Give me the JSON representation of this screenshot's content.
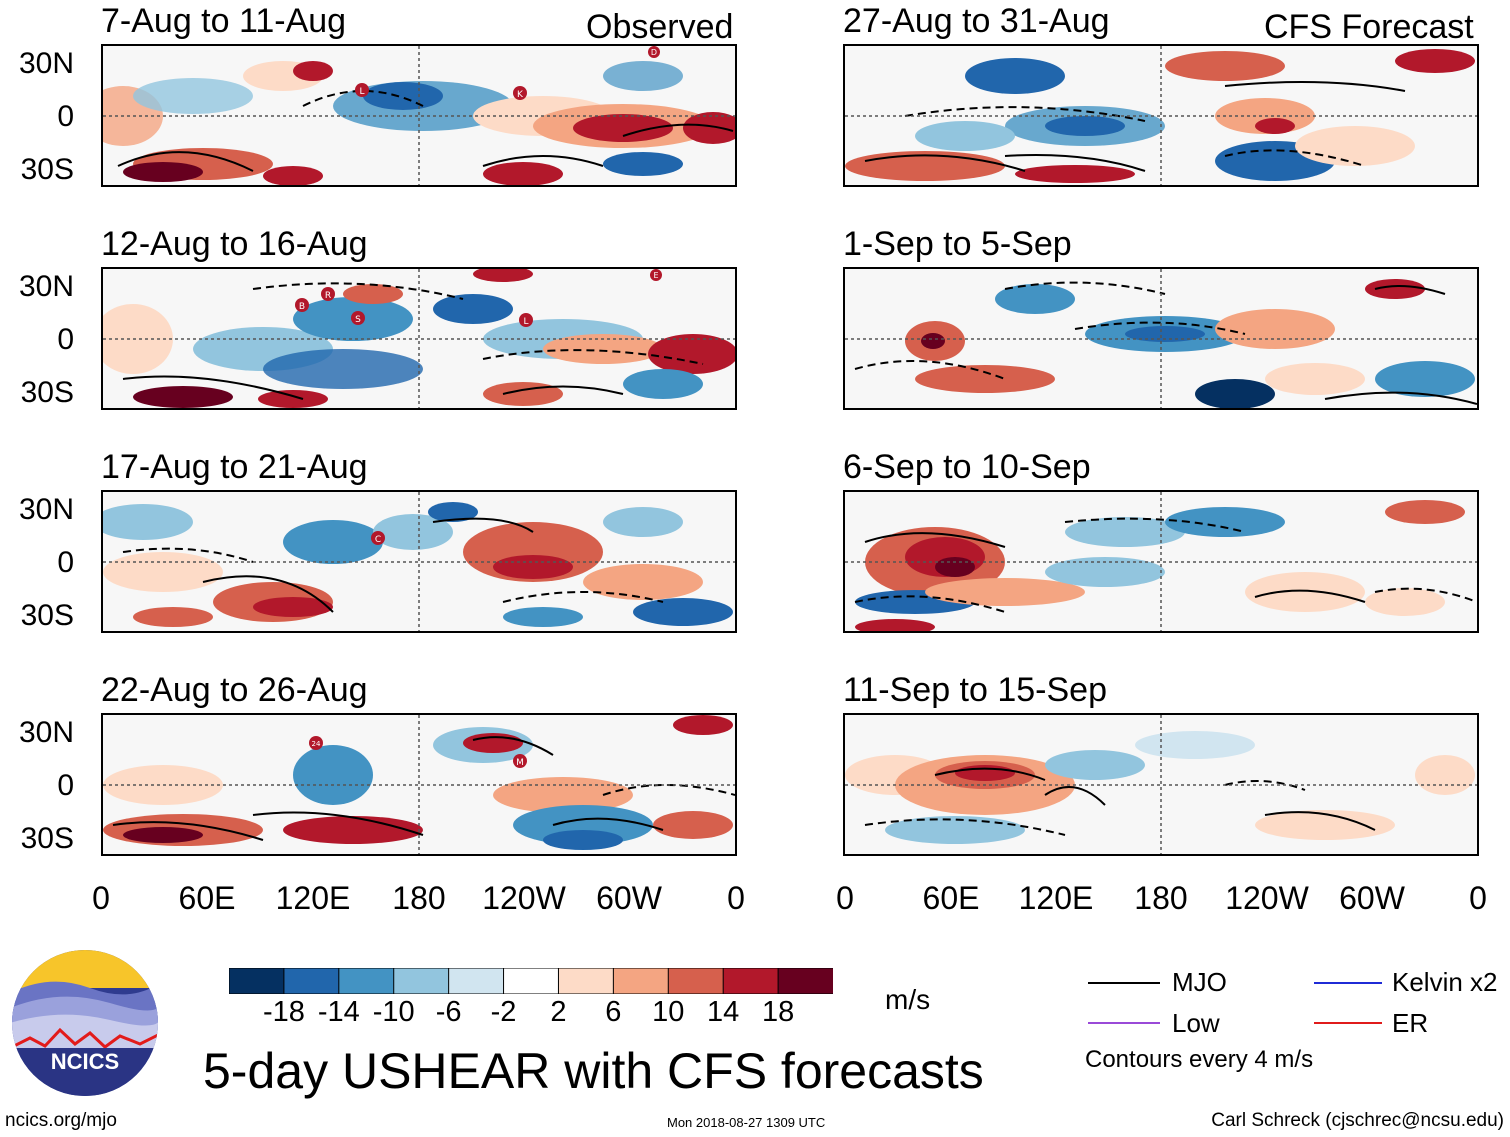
{
  "panels_left": [
    {
      "period": "7-Aug to 11-Aug",
      "tag": "Observed"
    },
    {
      "period": "12-Aug to 16-Aug",
      "tag": ""
    },
    {
      "period": "17-Aug to 21-Aug",
      "tag": ""
    },
    {
      "period": "22-Aug to 26-Aug",
      "tag": ""
    }
  ],
  "panels_right": [
    {
      "period": "27-Aug to 31-Aug",
      "tag": "CFS Forecast"
    },
    {
      "period": "1-Sep to 5-Sep",
      "tag": ""
    },
    {
      "period": "6-Sep to 10-Sep",
      "tag": ""
    },
    {
      "period": "11-Sep to 15-Sep",
      "tag": ""
    }
  ],
  "lat_labels": [
    "30N",
    "0",
    "30S"
  ],
  "lon_labels": [
    "0",
    "60E",
    "120E",
    "180",
    "120W",
    "60W",
    "0"
  ],
  "storm_markers": [
    [
      "L",
      "K",
      "D"
    ],
    [
      "B",
      "R",
      "S",
      "L",
      "E"
    ],
    [
      "C"
    ],
    [
      "24",
      "M"
    ]
  ],
  "colorbar": {
    "labels": [
      "-18",
      "-14",
      "-10",
      "-6",
      "-2",
      "2",
      "6",
      "10",
      "14",
      "18"
    ],
    "colors": [
      "#053061",
      "#2166ac",
      "#4393c3",
      "#92c5de",
      "#d1e5f0",
      "#ffffff",
      "#fddbc7",
      "#f4a582",
      "#d6604d",
      "#b2182b",
      "#67001f"
    ],
    "units": "m/s"
  },
  "legend": {
    "items": [
      {
        "label": "MJO",
        "color": "#000000"
      },
      {
        "label": "Kelvin x2",
        "color": "#1f2bd6"
      },
      {
        "label": "Low",
        "color": "#9a4ad8"
      },
      {
        "label": "ER",
        "color": "#e01b1b"
      }
    ],
    "contour_note": "Contours every 4 m/s"
  },
  "logo": {
    "text": "NCICS"
  },
  "title": "5-day USHEAR with CFS forecasts",
  "footer": {
    "url": "ncics.org/mjo",
    "timestamp": "Mon 2018-08-27 1309 UTC",
    "author": "Carl Schreck (cjschrec@ncsu.edu)"
  }
}
